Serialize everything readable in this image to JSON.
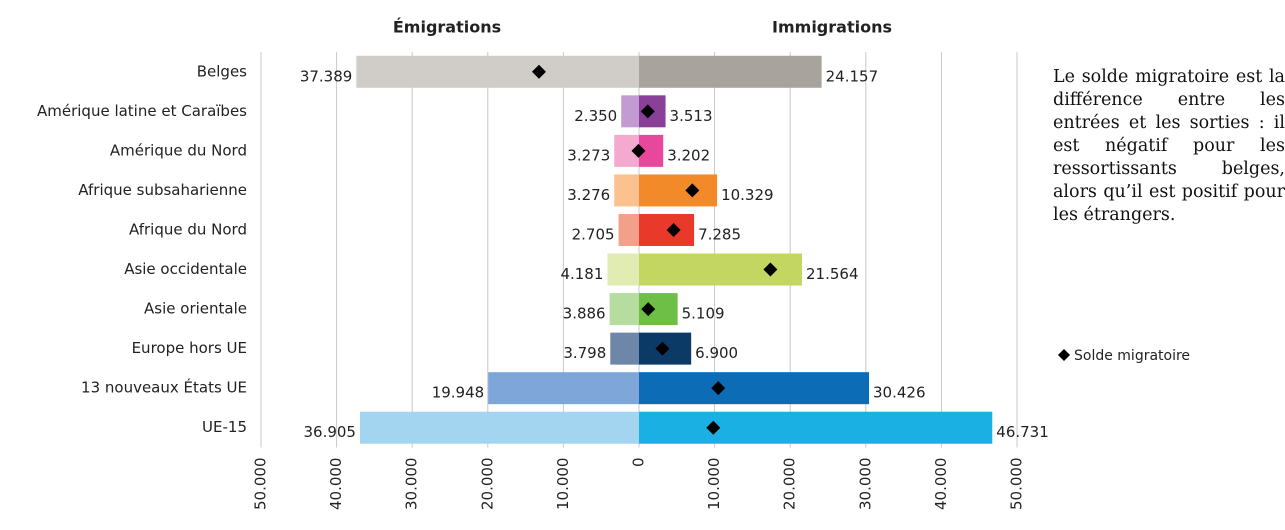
{
  "chart_data": {
    "type": "butterfly-bar",
    "annotations": [
      "Le solde migratoire est la différence entre les entrées et les sorties : il est négatif pour les ressortissants belges, alors qu’il est positif pour les étrangers."
    ],
    "categories": [
      "Belges",
      "Amérique latine et Caraïbes",
      "Amérique du Nord",
      "Afrique subsaharienne",
      "Afrique du Nord",
      "Asie occidentale",
      "Asie orientale",
      "Europe hors UE",
      "13 nouveaux États UE",
      "UE-15"
    ],
    "series": [
      {
        "name": "Émigrations",
        "side": "left",
        "colors": [
          "#d0ccc7",
          "#c39bd3",
          "#f4a9cf",
          "#fbc28f",
          "#f3a08a",
          "#e0ecb1",
          "#b6dca0",
          "#6e86a8",
          "#7ea6d8",
          "#a3d4f0"
        ],
        "values": [
          37389,
          2350,
          3273,
          3276,
          2705,
          4181,
          3886,
          3798,
          19948,
          36905
        ],
        "value_labels": [
          "37.389",
          "2.350",
          "3.273",
          "3.276",
          "2.705",
          "4.181",
          "3.886",
          "3.798",
          "19.948",
          "36.905"
        ]
      },
      {
        "name": "Immigrations",
        "side": "right",
        "colors": [
          "#a8a39c",
          "#8a3f98",
          "#e8489b",
          "#f28a2a",
          "#e8392b",
          "#c3d661",
          "#6dbf45",
          "#0b3a66",
          "#0c6cb5",
          "#1ab0e3"
        ],
        "values": [
          24157,
          3513,
          3202,
          10329,
          7285,
          21564,
          5109,
          6900,
          30426,
          46731
        ],
        "value_labels": [
          "24.157",
          "3.513",
          "3.202",
          "10.329",
          "7.285",
          "21.564",
          "5.109",
          "6.900",
          "30.426",
          "46.731"
        ]
      },
      {
        "name": "Solde migratoire",
        "marker": "diamond",
        "color": "#000000",
        "values": [
          -13232,
          1163,
          -71,
          7053,
          4580,
          17383,
          1223,
          3102,
          10478,
          9826
        ]
      }
    ],
    "xlim": [
      -50000,
      50000
    ],
    "xticks": [
      {
        "value": -50000,
        "label": "50.000"
      },
      {
        "value": -40000,
        "label": "40.000"
      },
      {
        "value": -30000,
        "label": "30.000"
      },
      {
        "value": -20000,
        "label": "20.000"
      },
      {
        "value": -10000,
        "label": "10.000"
      },
      0,
      {
        "value": 10000,
        "label": "10.000"
      },
      {
        "value": 20000,
        "label": "20.000"
      },
      {
        "value": 30000,
        "label": "30.000"
      },
      {
        "value": 40000,
        "label": "40.000"
      },
      {
        "value": 50000,
        "label": "50.000"
      }
    ],
    "grid": true
  }
}
